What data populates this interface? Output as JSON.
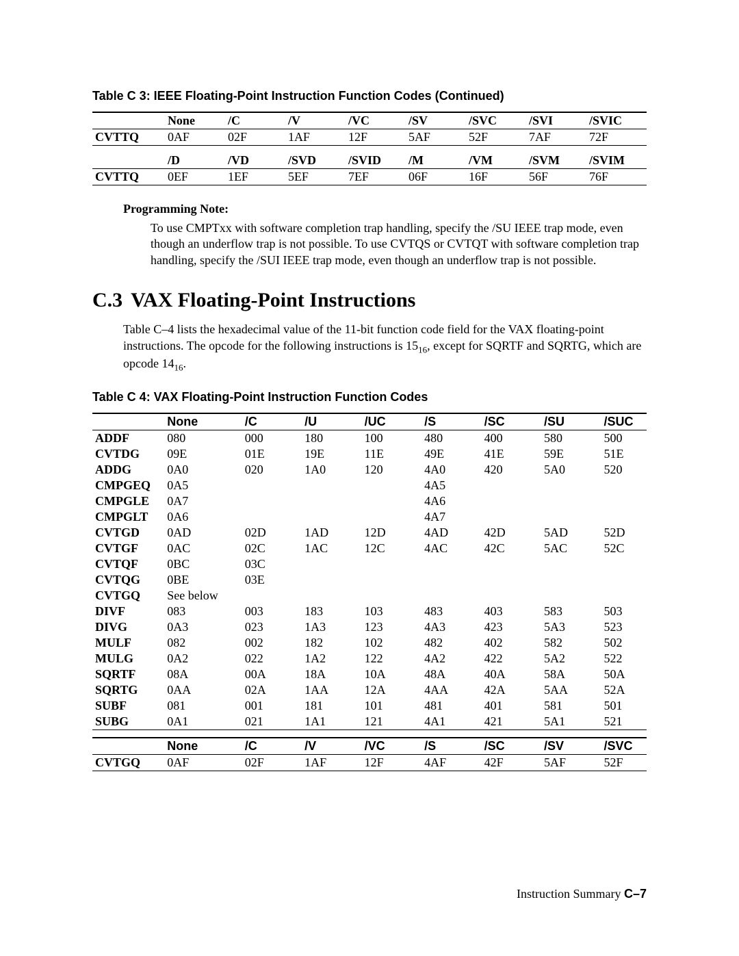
{
  "tableC3": {
    "caption": "Table C 3:  IEEE Floating-Point Instruction Function Codes (Continued)",
    "header1": [
      "",
      "None",
      "/C",
      "/V",
      "/VC",
      "/SV",
      "/SVC",
      "/SVI",
      "/SVIC"
    ],
    "rows1": [
      [
        "CVTTQ",
        "0AF",
        "02F",
        "1AF",
        "12F",
        "5AF",
        "52F",
        "7AF",
        "72F"
      ]
    ],
    "header2": [
      "",
      "/D",
      "/VD",
      "/SVD",
      "/SVID",
      "/M",
      "/VM",
      "/SVM",
      "/SVIM"
    ],
    "rows2": [
      [
        "CVTTQ",
        "0EF",
        "1EF",
        "5EF",
        "7EF",
        "06F",
        "16F",
        "56F",
        "76F"
      ]
    ]
  },
  "note": {
    "heading": "Programming Note:",
    "body": "To use CMPTxx with software completion trap handling, specify the /SU IEEE trap mode, even though an underflow trap is not possible. To use CVTQS or CVTQT with software completion trap handling, specify the /SUI IEEE trap mode, even though an underflow trap is not possible."
  },
  "section": {
    "num": "C.3",
    "title": "VAX Floating-Point Instructions",
    "para_a": "Table C–4 lists the hexadecimal value of the 11-bit function code field for the VAX floating-point instructions. The opcode for the following instructions is 15",
    "para_b": ", except for SQRTF and SQRTG, which are opcode 14",
    "para_c": ".",
    "sub": "16"
  },
  "tableC4": {
    "caption": "Table C 4:  VAX Floating-Point Instruction Function Codes",
    "header1": [
      "",
      "None",
      "/C",
      "/U",
      "/UC",
      "/S",
      "/SC",
      "/SU",
      "/SUC"
    ],
    "rows1": [
      [
        "ADDF",
        "080",
        "000",
        "180",
        "100",
        "480",
        "400",
        "580",
        "500"
      ],
      [
        "CVTDG",
        "09E",
        "01E",
        "19E",
        "11E",
        "49E",
        "41E",
        "59E",
        "51E"
      ],
      [
        "ADDG",
        "0A0",
        "020",
        "1A0",
        "120",
        "4A0",
        "420",
        "5A0",
        "520"
      ],
      [
        "CMPGEQ",
        "0A5",
        "",
        "",
        "",
        "4A5",
        "",
        "",
        ""
      ],
      [
        "CMPGLE",
        "0A7",
        "",
        "",
        "",
        "4A6",
        "",
        "",
        ""
      ],
      [
        "CMPGLT",
        "0A6",
        "",
        "",
        "",
        "4A7",
        "",
        "",
        ""
      ],
      [
        "CVTGD",
        "0AD",
        "02D",
        "1AD",
        "12D",
        "4AD",
        "42D",
        "5AD",
        "52D"
      ],
      [
        "CVTGF",
        "0AC",
        "02C",
        "1AC",
        "12C",
        "4AC",
        "42C",
        "5AC",
        "52C"
      ],
      [
        "CVTQF",
        "0BC",
        "03C",
        "",
        "",
        "",
        "",
        "",
        ""
      ],
      [
        "CVTQG",
        "0BE",
        "03E",
        "",
        "",
        "",
        "",
        "",
        ""
      ],
      [
        "CVTGQ",
        "See below",
        "",
        "",
        "",
        "",
        "",
        "",
        ""
      ],
      [
        "DIVF",
        "083",
        "003",
        "183",
        "103",
        "483",
        "403",
        "583",
        "503"
      ],
      [
        "DIVG",
        "0A3",
        "023",
        "1A3",
        "123",
        "4A3",
        "423",
        "5A3",
        "523"
      ],
      [
        "MULF",
        "082",
        "002",
        "182",
        "102",
        "482",
        "402",
        "582",
        "502"
      ],
      [
        "MULG",
        "0A2",
        "022",
        "1A2",
        "122",
        "4A2",
        "422",
        "5A2",
        "522"
      ],
      [
        "SQRTF",
        "08A",
        "00A",
        "18A",
        "10A",
        "48A",
        "40A",
        "58A",
        "50A"
      ],
      [
        "SQRTG",
        "0AA",
        "02A",
        "1AA",
        "12A",
        "4AA",
        "42A",
        "5AA",
        "52A"
      ],
      [
        "SUBF",
        "081",
        "001",
        "181",
        "101",
        "481",
        "401",
        "581",
        "501"
      ],
      [
        "SUBG",
        "0A1",
        "021",
        "1A1",
        "121",
        "4A1",
        "421",
        "5A1",
        "521"
      ]
    ],
    "header2": [
      "",
      "None",
      "/C",
      "/V",
      "/VC",
      "/S",
      "/SC",
      "/SV",
      "/SVC"
    ],
    "rows2": [
      [
        "CVTGQ",
        "0AF",
        "02F",
        "1AF",
        "12F",
        "4AF",
        "42F",
        "5AF",
        "52F"
      ]
    ]
  },
  "footer": {
    "text": "Instruction Summary ",
    "page": "C–7"
  },
  "style": {
    "header_font": "sans-bold",
    "label_font": "serif-bold",
    "cell_font": "serif",
    "colors": {
      "text": "#000000",
      "bg": "#ffffff",
      "rule": "#000000"
    },
    "font_sizes": {
      "body": 18,
      "caption": 18,
      "h2": 30,
      "sub": 13
    }
  }
}
